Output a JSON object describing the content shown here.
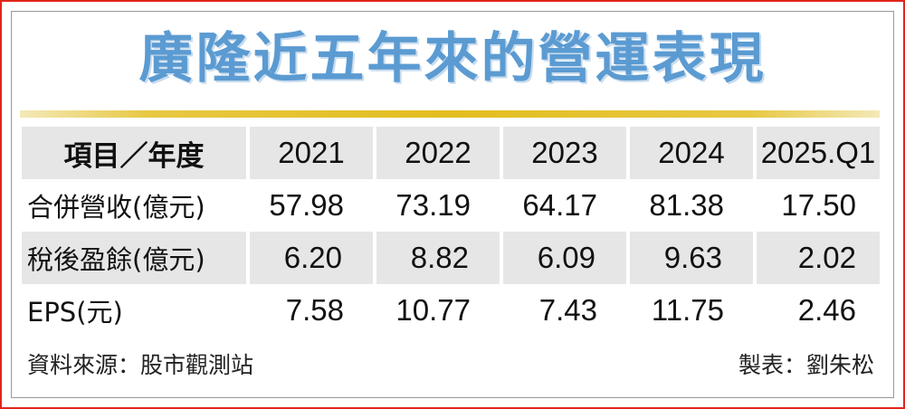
{
  "chart_data": {
    "type": "table",
    "title": "廣隆近五年來的營運表現",
    "header_label": "項目／年度",
    "columns": [
      "2021",
      "2022",
      "2023",
      "2024",
      "2025.Q1"
    ],
    "rows": [
      {
        "label": "合併營收(億元)",
        "values": [
          "57.98",
          "73.19",
          "64.17",
          "81.38",
          "17.50"
        ]
      },
      {
        "label": "稅後盈餘(億元)",
        "values": [
          "6.20",
          "8.82",
          "6.09",
          "9.63",
          "2.02"
        ]
      },
      {
        "label": "EPS(元)",
        "values": [
          "7.58",
          "10.77",
          "7.43",
          "11.75",
          "2.46"
        ]
      }
    ],
    "source": "資料來源：股市觀測站",
    "credit": "製表：劉朱松"
  },
  "colors": {
    "title": "#5b9bd2",
    "frame": "#e0251b",
    "rule": "#e3bd1f",
    "shade": "#e6e6e6"
  }
}
